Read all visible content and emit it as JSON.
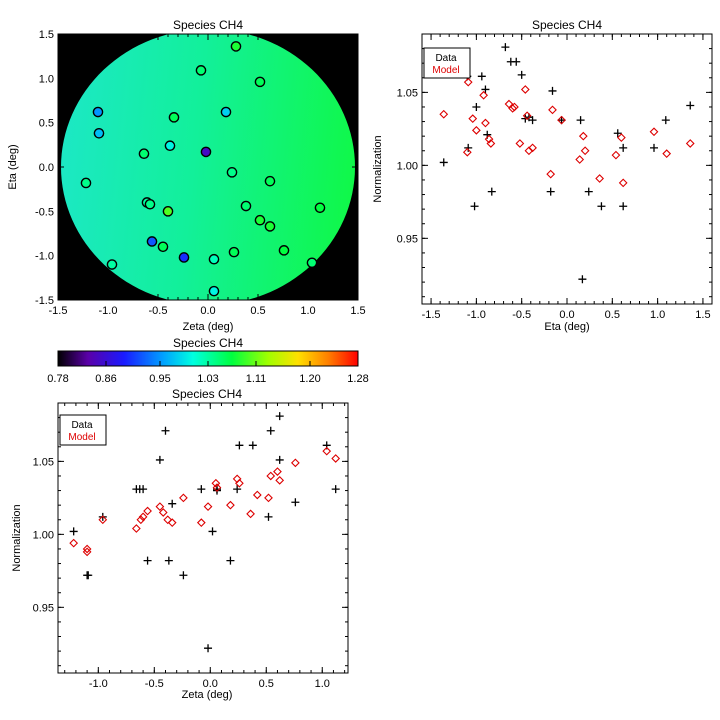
{
  "chart_data": [
    {
      "type": "scatter",
      "subtype": "map",
      "title": "Species CH4",
      "xlabel": "Zeta (deg)",
      "ylabel": "Eta (deg)",
      "xlim": [
        -1.5,
        1.5
      ],
      "ylim": [
        -1.5,
        1.5
      ],
      "xticks": [
        "-1.5",
        "-1.0",
        "-0.5",
        "0.0",
        "0.5",
        "1.0",
        "1.5"
      ],
      "yticks": [
        "-1.5",
        "-1.0",
        "-0.5",
        "0.0",
        "0.5",
        "1.0",
        "1.5"
      ],
      "field_value": 1.03,
      "points": [
        {
          "x": 0.28,
          "y": 1.36,
          "v": 1.08
        },
        {
          "x": -0.07,
          "y": 1.09,
          "v": 1.05
        },
        {
          "x": 0.52,
          "y": 0.96,
          "v": 1.06
        },
        {
          "x": -1.1,
          "y": 0.62,
          "v": 0.95
        },
        {
          "x": 0.18,
          "y": 0.62,
          "v": 0.98
        },
        {
          "x": -0.34,
          "y": 0.56,
          "v": 1.06
        },
        {
          "x": -1.09,
          "y": 0.38,
          "v": 0.97
        },
        {
          "x": -0.38,
          "y": 0.24,
          "v": 1.0
        },
        {
          "x": -0.64,
          "y": 0.15,
          "v": 1.05
        },
        {
          "x": -0.02,
          "y": 0.17,
          "v": 0.85
        },
        {
          "x": 0.24,
          "y": -0.06,
          "v": 1.04
        },
        {
          "x": -1.22,
          "y": -0.18,
          "v": 1.04
        },
        {
          "x": 0.62,
          "y": -0.16,
          "v": 1.06
        },
        {
          "x": -0.61,
          "y": -0.4,
          "v": 1.03
        },
        {
          "x": -0.58,
          "y": -0.42,
          "v": 1.04
        },
        {
          "x": 0.38,
          "y": -0.44,
          "v": 1.05
        },
        {
          "x": 1.12,
          "y": -0.46,
          "v": 1.07
        },
        {
          "x": -0.4,
          "y": -0.5,
          "v": 1.1
        },
        {
          "x": 0.52,
          "y": -0.6,
          "v": 1.08
        },
        {
          "x": 0.62,
          "y": -0.67,
          "v": 1.08
        },
        {
          "x": -0.56,
          "y": -0.84,
          "v": 0.92
        },
        {
          "x": -0.45,
          "y": -0.9,
          "v": 1.06
        },
        {
          "x": 0.76,
          "y": -0.94,
          "v": 1.07
        },
        {
          "x": 0.26,
          "y": -0.96,
          "v": 1.06
        },
        {
          "x": -0.24,
          "y": -1.02,
          "v": 0.9
        },
        {
          "x": 0.06,
          "y": -1.04,
          "v": 1.02
        },
        {
          "x": -0.96,
          "y": -1.1,
          "v": 1.03
        },
        {
          "x": 1.04,
          "y": -1.08,
          "v": 1.05
        },
        {
          "x": 0.06,
          "y": -1.4,
          "v": 1.0
        }
      ]
    },
    {
      "type": "colorbar",
      "title": "Species CH4",
      "range": [
        0.78,
        1.28
      ],
      "ticks": [
        "0.78",
        "0.86",
        "0.95",
        "1.03",
        "1.11",
        "1.20",
        "1.28"
      ]
    },
    {
      "type": "scatter",
      "title": "Species CH4",
      "xlabel": "Eta (deg)",
      "ylabel": "Normalization",
      "xlim": [
        -1.6,
        1.6
      ],
      "ylim": [
        0.905,
        1.09
      ],
      "xticks": [
        "-1.5",
        "-1.0",
        "-0.5",
        "0.0",
        "0.5",
        "1.0",
        "1.5"
      ],
      "yticks": [
        "0.95",
        "1.00",
        "1.05"
      ],
      "legend": {
        "placement": "top-left",
        "entries": [
          "Data",
          "Model"
        ]
      },
      "series": [
        {
          "name": "Data",
          "marker": "plus",
          "color": "#000000",
          "points": [
            [
              -1.36,
              1.002
            ],
            [
              -1.1,
              1.061
            ],
            [
              -1.09,
              1.012
            ],
            [
              -1.02,
              0.972
            ],
            [
              -1.0,
              1.04
            ],
            [
              -0.94,
              1.061
            ],
            [
              -0.9,
              1.052
            ],
            [
              -0.88,
              1.021
            ],
            [
              -0.83,
              0.982
            ],
            [
              -0.68,
              1.081
            ],
            [
              -0.62,
              1.071
            ],
            [
              -0.56,
              1.071
            ],
            [
              -0.5,
              1.062
            ],
            [
              -0.46,
              1.032
            ],
            [
              -0.42,
              1.033
            ],
            [
              -0.38,
              1.031
            ],
            [
              -0.18,
              0.982
            ],
            [
              -0.16,
              1.051
            ],
            [
              -0.06,
              1.031
            ],
            [
              0.15,
              1.031
            ],
            [
              0.17,
              0.922
            ],
            [
              0.24,
              0.982
            ],
            [
              0.38,
              0.972
            ],
            [
              0.56,
              1.022
            ],
            [
              0.62,
              0.972
            ],
            [
              0.62,
              1.012
            ],
            [
              0.96,
              1.012
            ],
            [
              1.09,
              1.031
            ],
            [
              1.36,
              1.041
            ]
          ]
        },
        {
          "name": "Model",
          "marker": "diamond",
          "color": "#dd0000",
          "points": [
            [
              -1.36,
              1.035
            ],
            [
              -1.09,
              1.057
            ],
            [
              -1.1,
              1.009
            ],
            [
              -1.04,
              1.032
            ],
            [
              -1.0,
              1.024
            ],
            [
              -0.92,
              1.048
            ],
            [
              -0.86,
              1.018
            ],
            [
              -0.9,
              1.029
            ],
            [
              -0.84,
              1.015
            ],
            [
              -0.64,
              1.042
            ],
            [
              -0.6,
              1.039
            ],
            [
              -0.58,
              1.04
            ],
            [
              -0.52,
              1.015
            ],
            [
              -0.46,
              1.052
            ],
            [
              -0.44,
              1.034
            ],
            [
              -0.42,
              1.01
            ],
            [
              -0.38,
              1.012
            ],
            [
              -0.18,
              0.994
            ],
            [
              -0.16,
              1.038
            ],
            [
              -0.06,
              1.031
            ],
            [
              0.18,
              1.02
            ],
            [
              0.2,
              1.01
            ],
            [
              0.14,
              1.004
            ],
            [
              0.36,
              0.991
            ],
            [
              0.54,
              1.007
            ],
            [
              0.6,
              1.019
            ],
            [
              0.62,
              0.988
            ],
            [
              0.96,
              1.023
            ],
            [
              1.1,
              1.008
            ],
            [
              1.36,
              1.015
            ]
          ]
        }
      ]
    },
    {
      "type": "scatter",
      "title": "Species CH4",
      "xlabel": "Zeta (deg)",
      "ylabel": "Normalization",
      "xlim": [
        -1.36,
        1.23
      ],
      "ylim": [
        0.905,
        1.09
      ],
      "xticks": [
        "-1.0",
        "-0.5",
        "0.0",
        "0.5",
        "1.0"
      ],
      "yticks": [
        "0.95",
        "1.00",
        "1.05"
      ],
      "legend": {
        "placement": "top-left",
        "entries": [
          "Data",
          "Model"
        ]
      },
      "series": [
        {
          "name": "Data",
          "marker": "plus",
          "color": "#000000",
          "points": [
            [
              -1.22,
              1.002
            ],
            [
              -1.1,
              0.972
            ],
            [
              -1.09,
              0.972
            ],
            [
              -0.96,
              1.012
            ],
            [
              -0.66,
              1.031
            ],
            [
              -0.63,
              1.031
            ],
            [
              -0.6,
              1.031
            ],
            [
              -0.56,
              0.982
            ],
            [
              -0.45,
              1.051
            ],
            [
              -0.4,
              1.071
            ],
            [
              -0.37,
              0.982
            ],
            [
              -0.34,
              1.021
            ],
            [
              -0.24,
              0.972
            ],
            [
              -0.08,
              1.031
            ],
            [
              -0.02,
              0.922
            ],
            [
              0.02,
              1.002
            ],
            [
              0.06,
              1.031
            ],
            [
              0.06,
              1.03
            ],
            [
              0.18,
              0.982
            ],
            [
              0.24,
              1.031
            ],
            [
              0.26,
              1.061
            ],
            [
              0.38,
              1.061
            ],
            [
              0.52,
              1.012
            ],
            [
              0.54,
              1.071
            ],
            [
              0.62,
              1.081
            ],
            [
              0.62,
              1.051
            ],
            [
              0.76,
              1.022
            ],
            [
              1.04,
              1.061
            ],
            [
              1.12,
              1.031
            ]
          ]
        },
        {
          "name": "Model",
          "marker": "diamond",
          "color": "#dd0000",
          "points": [
            [
              -1.22,
              0.994
            ],
            [
              -1.1,
              0.99
            ],
            [
              -1.1,
              0.988
            ],
            [
              -0.96,
              1.01
            ],
            [
              -0.66,
              1.004
            ],
            [
              -0.62,
              1.01
            ],
            [
              -0.6,
              1.012
            ],
            [
              -0.56,
              1.016
            ],
            [
              -0.45,
              1.019
            ],
            [
              -0.42,
              1.015
            ],
            [
              -0.38,
              1.01
            ],
            [
              -0.34,
              1.008
            ],
            [
              -0.24,
              1.025
            ],
            [
              -0.08,
              1.008
            ],
            [
              -0.02,
              1.019
            ],
            [
              0.05,
              1.035
            ],
            [
              0.06,
              1.032
            ],
            [
              0.18,
              1.02
            ],
            [
              0.24,
              1.038
            ],
            [
              0.26,
              1.035
            ],
            [
              0.36,
              1.014
            ],
            [
              0.42,
              1.027
            ],
            [
              0.52,
              1.025
            ],
            [
              0.54,
              1.04
            ],
            [
              0.6,
              1.043
            ],
            [
              0.62,
              1.037
            ],
            [
              0.76,
              1.049
            ],
            [
              1.04,
              1.057
            ],
            [
              1.12,
              1.052
            ]
          ]
        }
      ]
    }
  ]
}
